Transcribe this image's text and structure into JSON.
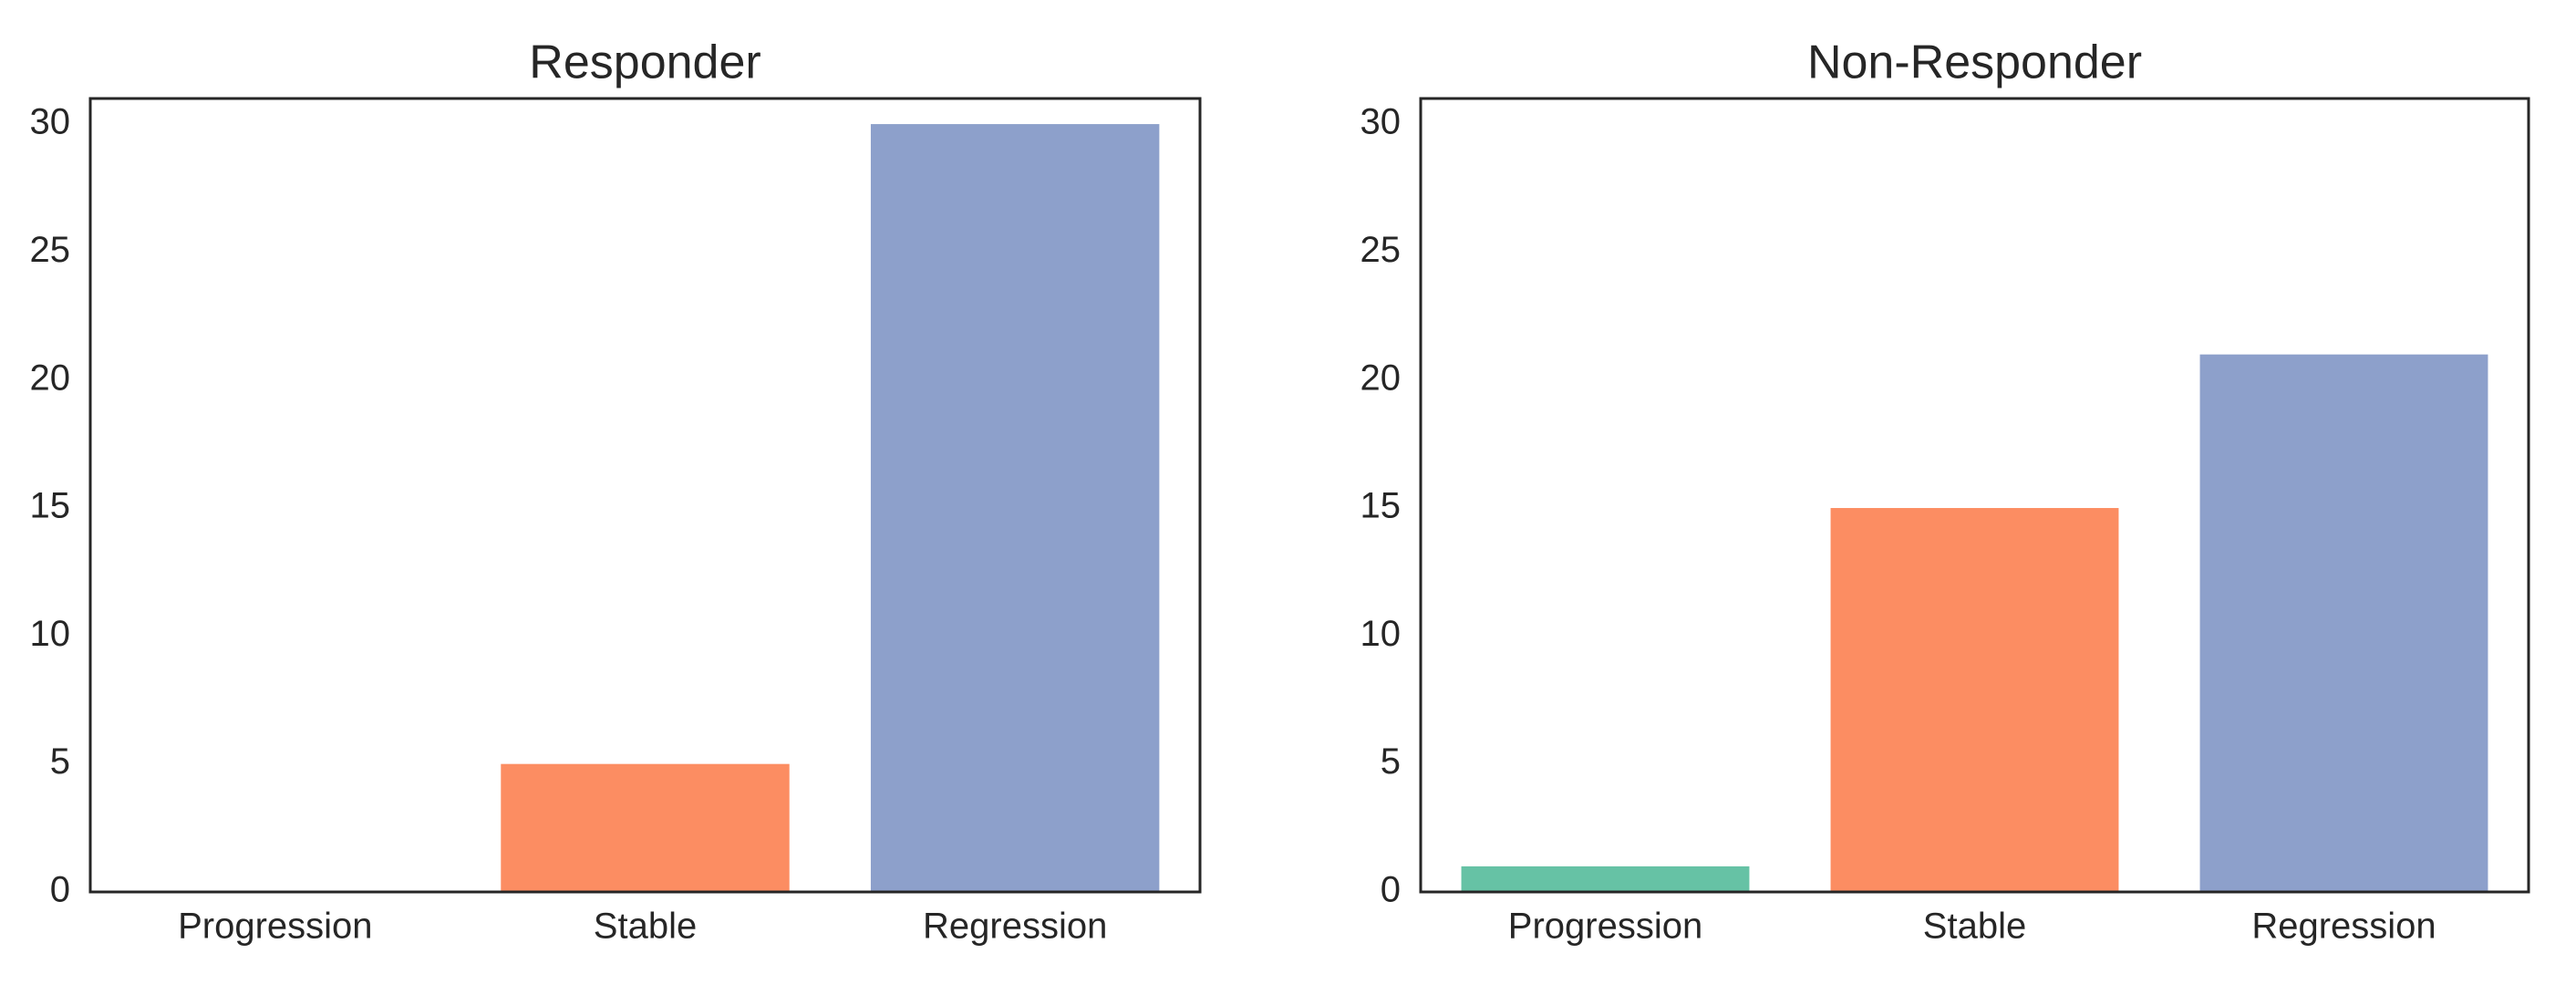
{
  "chart_data": [
    {
      "type": "bar",
      "title": "Responder",
      "categories": [
        "Progression",
        "Stable",
        "Regression"
      ],
      "values": [
        0,
        5,
        30
      ],
      "colors": [
        "#66c2a5",
        "#fc8d62",
        "#8da0cb"
      ],
      "ylim": [
        0,
        31
      ],
      "yticks": [
        0,
        5,
        10,
        15,
        20,
        25,
        30
      ]
    },
    {
      "type": "bar",
      "title": "Non-Responder",
      "categories": [
        "Progression",
        "Stable",
        "Regression"
      ],
      "values": [
        1,
        15,
        21
      ],
      "colors": [
        "#66c2a5",
        "#fc8d62",
        "#8da0cb"
      ],
      "ylim": [
        0,
        31
      ],
      "yticks": [
        0,
        5,
        10,
        15,
        20,
        25,
        30
      ]
    }
  ]
}
